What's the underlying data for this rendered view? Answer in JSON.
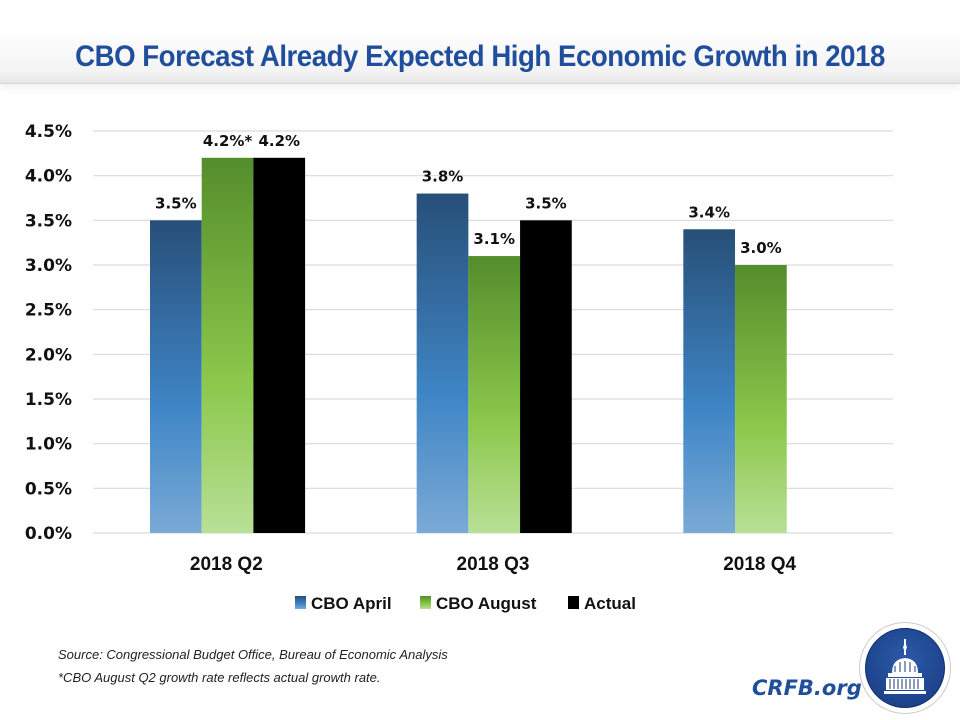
{
  "title": "CBO Forecast Already Expected High Economic Growth in 2018",
  "chart_data": {
    "type": "bar",
    "title": "CBO Forecast Already Expected High Economic Growth in 2018",
    "xlabel": "",
    "ylabel": "",
    "categories": [
      "2018 Q2",
      "2018 Q3",
      "2018 Q4"
    ],
    "series": [
      {
        "name": "CBO April",
        "values": [
          3.5,
          3.8,
          3.4
        ],
        "labels": [
          "3.5%",
          "3.8%",
          "3.4%"
        ],
        "color_top": "#274f78",
        "color_mid": "#3f86c6",
        "color_bottom": "#7aaad6"
      },
      {
        "name": "CBO August",
        "values": [
          4.2,
          3.1,
          3.0
        ],
        "labels": [
          "4.2%*",
          "3.1%",
          "3.0%"
        ],
        "color_top": "#548d2c",
        "color_mid": "#8cc84b",
        "color_bottom": "#b8e096"
      },
      {
        "name": "Actual",
        "values": [
          4.2,
          3.5,
          null
        ],
        "labels": [
          "4.2%",
          "3.5%",
          ""
        ],
        "color_top": "#000000",
        "color_mid": "#000000",
        "color_bottom": "#000000"
      }
    ],
    "ylim": [
      0,
      4.5
    ],
    "yticks": [
      0,
      0.5,
      1.0,
      1.5,
      2.0,
      2.5,
      3.0,
      3.5,
      4.0,
      4.5
    ],
    "ytick_labels": [
      "0.0%",
      "0.5%",
      "1.0%",
      "1.5%",
      "2.0%",
      "2.5%",
      "3.0%",
      "3.5%",
      "4.0%",
      "4.5%"
    ],
    "grid": true,
    "legend_position": "bottom-center"
  },
  "notes": {
    "source": "Source: Congressional Budget Office, Bureau of Economic Analysis",
    "footnote": "*CBO August Q2 growth rate reflects actual growth rate."
  },
  "branding": {
    "site": "CRFB.org",
    "logo_icon": "capitol-dome-icon"
  }
}
